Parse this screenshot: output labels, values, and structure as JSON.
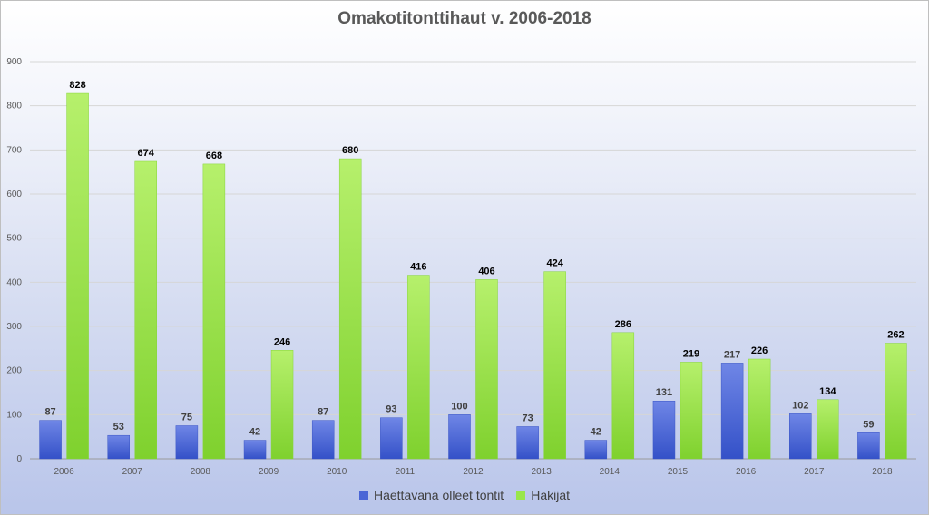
{
  "chart_data": {
    "type": "bar",
    "title": "Omakotitonttihaut v. 2006-2018",
    "xlabel": "",
    "ylabel": "",
    "ylim": [
      0,
      900
    ],
    "yticks": [
      0,
      100,
      200,
      300,
      400,
      500,
      600,
      700,
      800,
      900
    ],
    "grid": true,
    "legend_position": "bottom",
    "categories": [
      "2006",
      "2007",
      "2008",
      "2009",
      "2010",
      "2011",
      "2012",
      "2013",
      "2014",
      "2015",
      "2016",
      "2017",
      "2018"
    ],
    "series": [
      {
        "name": "Haettavana olleet tontit",
        "color": "#4a66d6",
        "values": [
          87,
          53,
          75,
          42,
          87,
          93,
          100,
          73,
          42,
          131,
          217,
          102,
          59
        ]
      },
      {
        "name": "Hakijat",
        "color": "#99e64a",
        "values": [
          828,
          674,
          668,
          246,
          680,
          416,
          406,
          424,
          286,
          219,
          226,
          134,
          262
        ]
      }
    ]
  }
}
